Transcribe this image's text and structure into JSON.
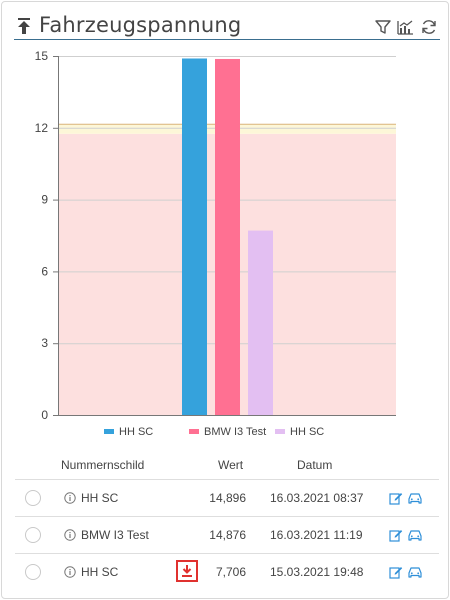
{
  "header": {
    "title": "Fahrzeugspannung",
    "icons": [
      "collapse-up-icon",
      "filter-icon",
      "chart-icon",
      "refresh-icon"
    ]
  },
  "colors": {
    "accent": "#3a6e8f",
    "band_red": "#fde0df",
    "band_yellow": "#fdf7d8",
    "band_line": "#d9b37a",
    "icon_blue": "#2f8fd8",
    "download_red": "#e0312f"
  },
  "chart_data": {
    "type": "bar",
    "categories": [
      "HH SC",
      "BMW I3 Test",
      "HH SC"
    ],
    "values": [
      14.896,
      14.876,
      7.706
    ],
    "series_colors": [
      "#35a2dc",
      "#ff7092",
      "#e3bff2"
    ],
    "ylim": [
      0,
      15
    ],
    "yticks": [
      0,
      3,
      6,
      9,
      12,
      15
    ],
    "bands": [
      {
        "from": 0,
        "to": 11.75,
        "color": "#fde0df"
      },
      {
        "from": 11.75,
        "to": 12.15,
        "color": "#fdf7d8"
      }
    ],
    "legend": [
      "HH SC",
      "BMW I3 Test",
      "HH SC"
    ],
    "legend_position": "bottom",
    "grid": true
  },
  "table": {
    "columns": [
      "Nummernschild",
      "Wert",
      "Datum"
    ],
    "rows": [
      {
        "plate": "HH SC",
        "value": "14,896",
        "date": "16.03.2021 08:37",
        "download": false
      },
      {
        "plate": "BMW I3 Test",
        "value": "14,876",
        "date": "16.03.2021 11:19",
        "download": false
      },
      {
        "plate": "HH SC",
        "value": "7,706",
        "date": "15.03.2021 19:48",
        "download": true
      }
    ]
  }
}
